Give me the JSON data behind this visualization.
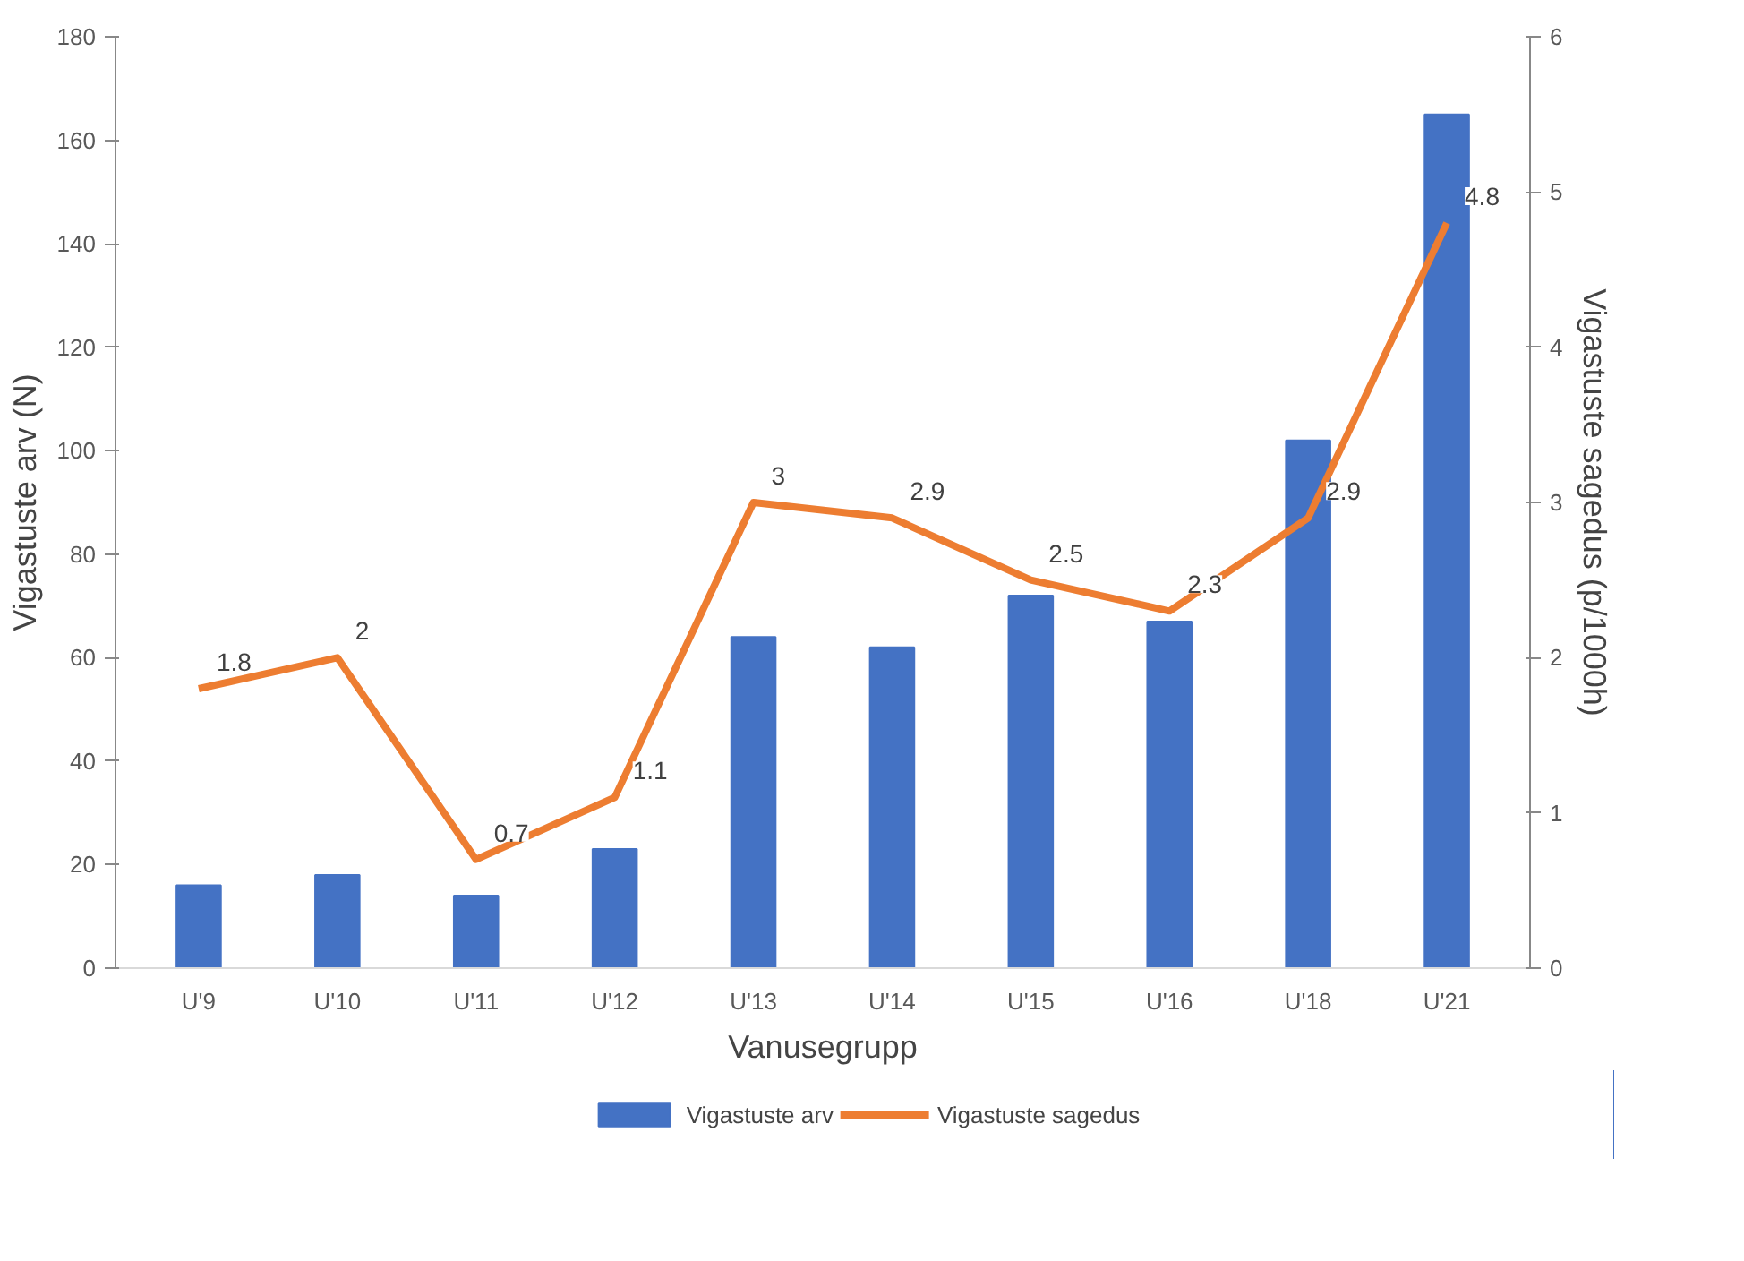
{
  "chart_data": {
    "type": "bar",
    "xlabel": "Vanusegrupp",
    "ylabel": "Vigastuste arv (N)",
    "y2label": "Vigastuste sagedus (p/1000h)",
    "categories": [
      "U'9",
      "U'10",
      "U'11",
      "U'12",
      "U'13",
      "U'14",
      "U'15",
      "U'16",
      "U'18",
      "U'21"
    ],
    "series": [
      {
        "name": "Vigastuste arv",
        "color": "#4472c4",
        "values": [
          16,
          18,
          14,
          23,
          64,
          62,
          72,
          67,
          102,
          165
        ]
      },
      {
        "name": "Vigastuste sagedus",
        "type": "line",
        "axis": "y2",
        "color": "#ed7d31",
        "values": [
          1.8,
          2,
          0.7,
          1.1,
          3,
          2.9,
          2.5,
          2.3,
          2.9,
          4.8
        ],
        "value_labels": [
          "1.8",
          "2",
          "0.7",
          "1.1",
          "3",
          "2.9",
          "2.5",
          "2.3",
          "2.9",
          "4.8"
        ]
      }
    ],
    "ylim": [
      0,
      180
    ],
    "yticks": [
      0,
      20,
      40,
      60,
      80,
      100,
      120,
      140,
      160,
      180
    ],
    "y2lim": [
      0,
      6
    ],
    "y2ticks": [
      0,
      1,
      2,
      3,
      4,
      5,
      6
    ],
    "grid": false,
    "legend": "bottom",
    "marker": "none",
    "line_style": "solid"
  }
}
